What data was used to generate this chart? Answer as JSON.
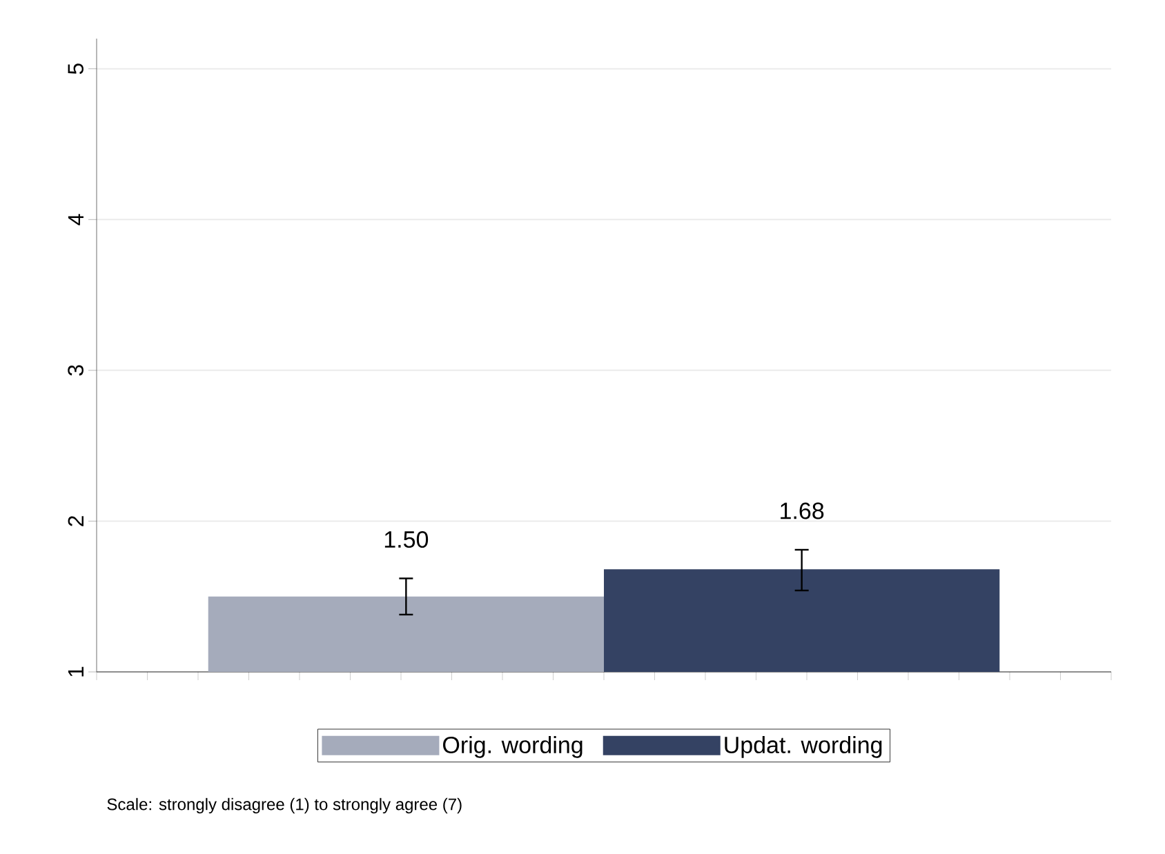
{
  "chart_data": {
    "type": "bar",
    "categories": [
      null
    ],
    "series": [
      {
        "name": "Orig. wording",
        "color": "#a5abbb",
        "values": [
          1.5
        ],
        "errors": [
          [
            1.38,
            1.62
          ]
        ],
        "value_labels": [
          "1.50"
        ]
      },
      {
        "name": "Updat. wording",
        "color": "#344263",
        "values": [
          1.68
        ],
        "errors": [
          [
            1.54,
            1.81
          ]
        ],
        "value_labels": [
          "1.68"
        ]
      }
    ],
    "ylim": [
      1,
      5.2
    ],
    "yticks": [
      1,
      2,
      3,
      4,
      5
    ],
    "grid": "y",
    "legend": "bottom",
    "annotations": [
      "Scale: strongly disagree (1) to strongly agree (7)"
    ]
  }
}
